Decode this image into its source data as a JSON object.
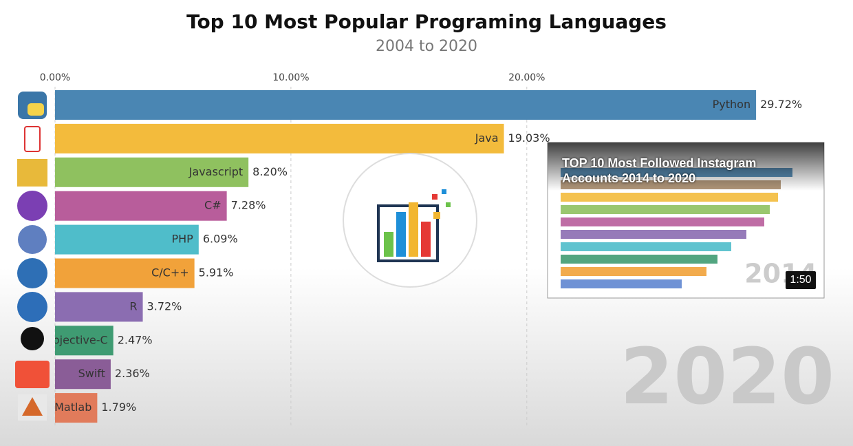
{
  "chart_data": {
    "type": "hbar",
    "title": "Top 10 Most Popular Programing Languages",
    "subtitle": "2004 to 2020",
    "year": "2020",
    "categories": [
      "Python",
      "Java",
      "Javascript",
      "C#",
      "PHP",
      "C/C++",
      "R",
      "Objective-C",
      "Swift",
      "Matlab"
    ],
    "values": [
      29.72,
      19.03,
      8.2,
      7.28,
      6.09,
      5.91,
      3.72,
      2.47,
      2.36,
      1.79
    ],
    "value_labels": [
      "29.72%",
      "19.03%",
      "8.20%",
      "7.28%",
      "6.09%",
      "5.91%",
      "3.72%",
      "2.47%",
      "2.36%",
      "1.79%"
    ],
    "colors": [
      "#4a86b3",
      "#f3bb3c",
      "#8fc15f",
      "#b85d9b",
      "#4fbdca",
      "#f1a23a",
      "#8b6db1",
      "#3f9b72",
      "#8a5d97",
      "#e17b5b"
    ],
    "xlim": [
      0,
      33.8
    ],
    "xticks": [
      {
        "value": 0,
        "label": "0.00%"
      },
      {
        "value": 10,
        "label": "10.00%"
      },
      {
        "value": 20,
        "label": "20.00%"
      }
    ],
    "grid": true
  },
  "video_card": {
    "title": "TOP 10 Most Followed Instagram Accounts 2014 to 2020",
    "year": "2014",
    "duration": "1:50"
  }
}
